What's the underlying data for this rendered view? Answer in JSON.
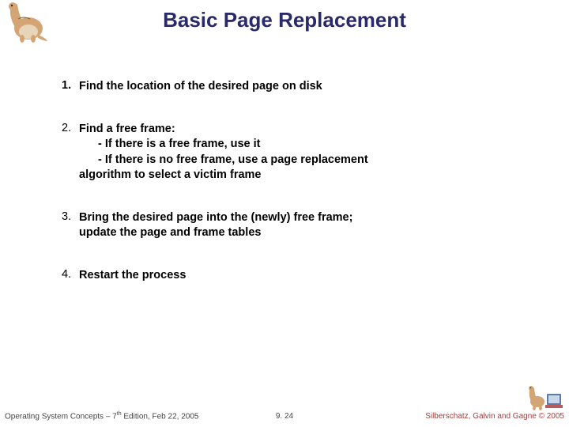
{
  "title": "Basic Page Replacement",
  "items": [
    {
      "num": "1.",
      "numBold": true,
      "lines": [
        "Find the location of the desired page on disk"
      ]
    },
    {
      "num": "2.",
      "numBold": false,
      "lines": [
        "Find a free frame:",
        "- If there is a free frame, use it",
        "- If there is no free frame, use a page replacement",
        "algorithm to select a <b>victim</b> frame"
      ],
      "subIndent": [
        false,
        true,
        true,
        false
      ]
    },
    {
      "num": "3.",
      "numBold": false,
      "lines": [
        "Bring  the desired page into the (newly) free frame;",
        "update the page and frame tables"
      ],
      "subIndent": [
        false,
        false
      ]
    },
    {
      "num": "4.",
      "numBold": false,
      "lines": [
        "Restart the process"
      ]
    }
  ],
  "footer": {
    "leftPrefix": "Operating System Concepts – 7",
    "leftSup": "th",
    "leftSuffix": " Edition, Feb 22, 2005",
    "center": "9. 24",
    "right": "Silberschatz, Galvin and Gagne © 2005"
  },
  "colors": {
    "title": "#2a2a6a",
    "footerRight": "#a04040",
    "dinoBody": "#d4a574",
    "dinoBelly": "#e8d4b8",
    "bookBlue": "#5b7ba8",
    "bookRed": "#b85c5c"
  }
}
